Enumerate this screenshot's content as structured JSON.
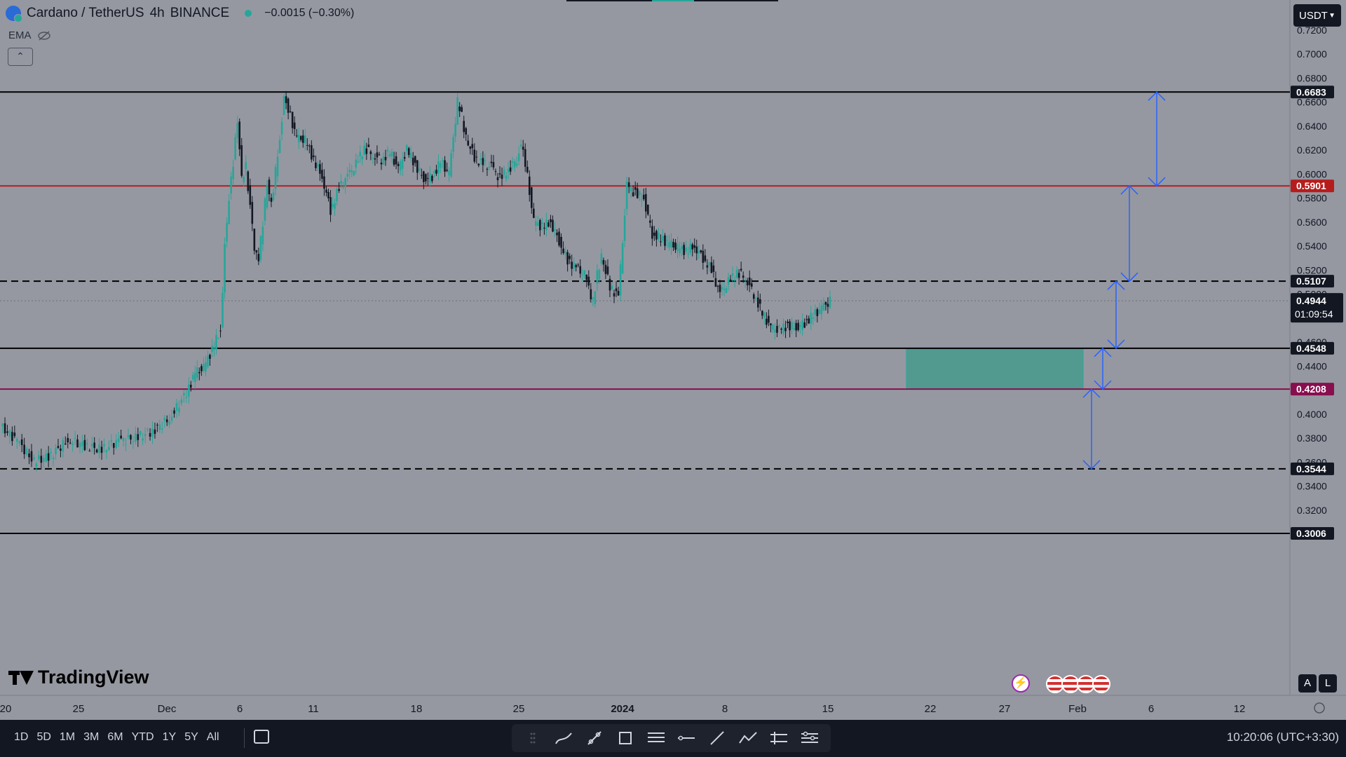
{
  "header": {
    "symbol": "Cardano / TetherUS",
    "interval": "4h",
    "exchange": "BINANCE",
    "change": "−0.0015 (−0.30%)",
    "indicator": "EMA",
    "currency": "USDT"
  },
  "price_axis": {
    "ticks": [
      "0.7200",
      "0.7000",
      "0.6800",
      "0.6600",
      "0.6400",
      "0.6200",
      "0.6000",
      "0.5800",
      "0.5600",
      "0.5400",
      "0.5200",
      "0.5000",
      "0.4800",
      "0.4600",
      "0.4400",
      "0.4200",
      "0.4000",
      "0.3800",
      "0.3600",
      "0.3400",
      "0.3200"
    ]
  },
  "time_axis": {
    "ticks": [
      "20",
      "25",
      "Dec",
      "6",
      "11",
      "18",
      "25",
      "2024",
      "8",
      "15",
      "22",
      "27",
      "Feb",
      "6",
      "12"
    ]
  },
  "levels": [
    {
      "price": "0.6683",
      "style": "solid",
      "color": "#000000"
    },
    {
      "price": "0.5901",
      "style": "solid",
      "color": "#b71c1c"
    },
    {
      "price": "0.5107",
      "style": "dashed",
      "color": "#000000"
    },
    {
      "price": "0.4548",
      "style": "solid",
      "color": "#000000"
    },
    {
      "price": "0.4208",
      "style": "solid",
      "color": "#880e4f"
    },
    {
      "price": "0.3544",
      "style": "dashed",
      "color": "#000000"
    },
    {
      "price": "0.3006",
      "style": "solid",
      "color": "#000000"
    }
  ],
  "last_price": {
    "price": "0.4944",
    "countdown": "01:09:54"
  },
  "zone": {
    "top": 0.4548,
    "bottom": 0.4208,
    "color": "#4f9a90"
  },
  "arrows": [
    {
      "from": 0.5901,
      "to": 0.6683
    },
    {
      "from": 0.5107,
      "to": 0.5901
    },
    {
      "from": 0.4548,
      "to": 0.5107
    },
    {
      "from": 0.4208,
      "to": 0.4548
    },
    {
      "from": 0.3544,
      "to": 0.4208
    }
  ],
  "price_path": [
    [
      0,
      0.39
    ],
    [
      4,
      0.378
    ],
    [
      8,
      0.36
    ],
    [
      12,
      0.366
    ],
    [
      16,
      0.378
    ],
    [
      20,
      0.374
    ],
    [
      24,
      0.37
    ],
    [
      28,
      0.378
    ],
    [
      32,
      0.38
    ],
    [
      36,
      0.386
    ],
    [
      40,
      0.396
    ],
    [
      44,
      0.418
    ],
    [
      46,
      0.434
    ],
    [
      48,
      0.438
    ],
    [
      50,
      0.454
    ],
    [
      52,
      0.47
    ],
    [
      53,
      0.54
    ],
    [
      54,
      0.58
    ],
    [
      55,
      0.61
    ],
    [
      56,
      0.644
    ],
    [
      57,
      0.596
    ],
    [
      58,
      0.606
    ],
    [
      60,
      0.54
    ],
    [
      61,
      0.53
    ],
    [
      62,
      0.56
    ],
    [
      63,
      0.592
    ],
    [
      64,
      0.574
    ],
    [
      66,
      0.63
    ],
    [
      67,
      0.664
    ],
    [
      68,
      0.654
    ],
    [
      70,
      0.63
    ],
    [
      72,
      0.628
    ],
    [
      74,
      0.612
    ],
    [
      76,
      0.598
    ],
    [
      78,
      0.57
    ],
    [
      80,
      0.588
    ],
    [
      82,
      0.598
    ],
    [
      84,
      0.608
    ],
    [
      86,
      0.622
    ],
    [
      88,
      0.616
    ],
    [
      90,
      0.612
    ],
    [
      92,
      0.618
    ],
    [
      94,
      0.604
    ],
    [
      96,
      0.62
    ],
    [
      98,
      0.608
    ],
    [
      100,
      0.596
    ],
    [
      102,
      0.598
    ],
    [
      104,
      0.61
    ],
    [
      106,
      0.6
    ],
    [
      108,
      0.66
    ],
    [
      109,
      0.648
    ],
    [
      110,
      0.63
    ],
    [
      112,
      0.614
    ],
    [
      114,
      0.608
    ],
    [
      116,
      0.606
    ],
    [
      118,
      0.596
    ],
    [
      120,
      0.604
    ],
    [
      122,
      0.612
    ],
    [
      123,
      0.626
    ],
    [
      124,
      0.61
    ],
    [
      126,
      0.56
    ],
    [
      128,
      0.556
    ],
    [
      130,
      0.56
    ],
    [
      132,
      0.544
    ],
    [
      134,
      0.528
    ],
    [
      136,
      0.522
    ],
    [
      138,
      0.516
    ],
    [
      140,
      0.494
    ],
    [
      141,
      0.516
    ],
    [
      142,
      0.532
    ],
    [
      144,
      0.506
    ],
    [
      146,
      0.498
    ],
    [
      148,
      0.59
    ],
    [
      150,
      0.584
    ],
    [
      152,
      0.58
    ],
    [
      154,
      0.55
    ],
    [
      156,
      0.546
    ],
    [
      158,
      0.542
    ],
    [
      160,
      0.538
    ],
    [
      162,
      0.536
    ],
    [
      164,
      0.54
    ],
    [
      166,
      0.53
    ],
    [
      168,
      0.52
    ],
    [
      170,
      0.5
    ],
    [
      172,
      0.51
    ],
    [
      174,
      0.518
    ],
    [
      176,
      0.514
    ],
    [
      178,
      0.5
    ],
    [
      180,
      0.484
    ],
    [
      182,
      0.472
    ],
    [
      184,
      0.47
    ],
    [
      186,
      0.474
    ],
    [
      188,
      0.472
    ],
    [
      190,
      0.476
    ],
    [
      192,
      0.482
    ],
    [
      194,
      0.488
    ],
    [
      196,
      0.494
    ]
  ],
  "watermark": "TradingView",
  "scale_buttons": [
    "A",
    "L"
  ],
  "bottom_bar": {
    "ranges": [
      "1D",
      "5D",
      "1M",
      "3M",
      "6M",
      "YTD",
      "1Y",
      "5Y",
      "All"
    ],
    "clock": "10:20:06 (UTC+3:30)"
  },
  "colors": {
    "up": "#26a69a",
    "down": "#131722",
    "arrow": "#2962ff",
    "last_price_label": "#131722"
  }
}
